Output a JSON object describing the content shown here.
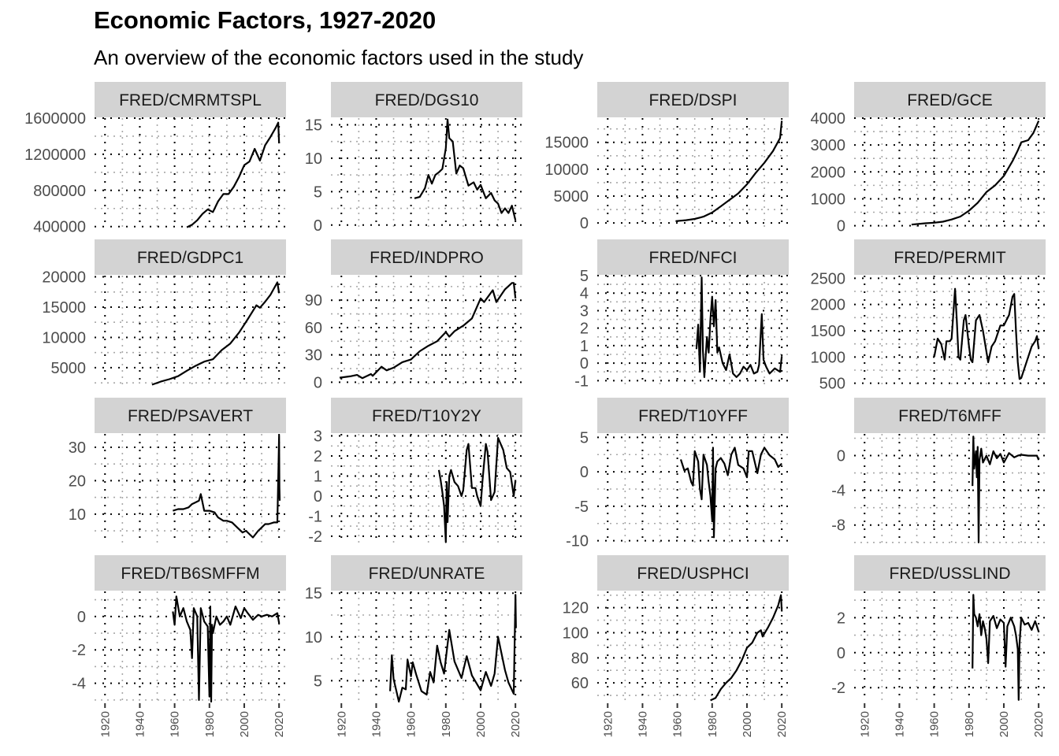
{
  "title": "Economic Factors, 1927-2020",
  "subtitle": "An overview of the economic factors used in the study",
  "chart_data": {
    "type": "line",
    "layout": "facet-grid 4x4, free y scales, shared x axis",
    "xlim": [
      1914,
      2024
    ],
    "x_ticks": [
      1920,
      1940,
      1960,
      1980,
      2000,
      2020
    ],
    "grid": "dotted major and minor lines",
    "legend": "none",
    "colors": {
      "strip": "#d3d3d3",
      "line": "#000000",
      "major_grid": "#000000",
      "minor_grid": "#a8a8a8",
      "axis_text": "#4d4d4d"
    },
    "panels": [
      {
        "label": "FRED/CMRMTSPL",
        "ylim": [
          380000,
          1600000
        ],
        "y_ticks": [
          400000,
          800000,
          1200000,
          1600000
        ],
        "y_tick_labels": [
          "400000",
          "800000",
          "1200000",
          "1600000"
        ],
        "x": [
          1967,
          1970,
          1973,
          1976,
          1979,
          1982,
          1985,
          1988,
          1991,
          1994,
          1997,
          2000,
          2003,
          2006,
          2009,
          2012,
          2015,
          2018,
          2019.5,
          2020
        ],
        "y": [
          392000,
          420000,
          470000,
          540000,
          590000,
          560000,
          680000,
          760000,
          760000,
          840000,
          950000,
          1080000,
          1120000,
          1260000,
          1130000,
          1300000,
          1390000,
          1490000,
          1550000,
          1320000
        ]
      },
      {
        "label": "FRED/DGS10",
        "ylim": [
          -0.5,
          16
        ],
        "y_ticks": [
          0,
          5,
          10,
          15
        ],
        "y_tick_labels": [
          "0",
          "5",
          "10",
          "15"
        ],
        "x": [
          1962,
          1965,
          1968,
          1970,
          1972,
          1974,
          1976,
          1978,
          1980,
          1981,
          1982,
          1984,
          1986,
          1988,
          1990,
          1993,
          1996,
          1998,
          2000,
          2003,
          2006,
          2008,
          2010,
          2012,
          2014,
          2016,
          2018,
          2020
        ],
        "y": [
          4.0,
          4.2,
          5.5,
          7.5,
          6.2,
          7.5,
          7.9,
          8.4,
          11.5,
          15.8,
          13.0,
          12.5,
          7.7,
          8.9,
          8.5,
          5.9,
          6.4,
          5.3,
          6.0,
          4.0,
          4.8,
          3.7,
          3.2,
          1.8,
          2.5,
          1.8,
          2.9,
          0.7
        ]
      },
      {
        "label": "FRED/DSPI",
        "ylim": [
          -1000,
          19500
        ],
        "y_ticks": [
          0,
          5000,
          10000,
          15000
        ],
        "y_tick_labels": [
          "0",
          "5000",
          "10000",
          "15000"
        ],
        "x": [
          1959,
          1965,
          1970,
          1975,
          1980,
          1985,
          1990,
          1995,
          2000,
          2005,
          2010,
          2015,
          2019,
          2020
        ],
        "y": [
          350,
          520,
          750,
          1180,
          1950,
          3100,
          4300,
          5500,
          7200,
          9300,
          11200,
          13400,
          15800,
          19000
        ]
      },
      {
        "label": "FRED/GCE",
        "ylim": [
          -100,
          4000
        ],
        "y_ticks": [
          0,
          1000,
          2000,
          3000,
          4000
        ],
        "y_tick_labels": [
          "0",
          "1000",
          "2000",
          "3000",
          "4000"
        ],
        "x": [
          1947,
          1955,
          1960,
          1965,
          1970,
          1975,
          1980,
          1985,
          1990,
          1995,
          2000,
          2005,
          2008,
          2010,
          2014,
          2017,
          2020
        ],
        "y": [
          40,
          90,
          110,
          150,
          230,
          340,
          560,
          850,
          1250,
          1500,
          1850,
          2400,
          2800,
          3100,
          3180,
          3450,
          3900
        ]
      },
      {
        "label": "FRED/GDPC1",
        "ylim": [
          2000,
          20200
        ],
        "y_ticks": [
          5000,
          10000,
          15000,
          20000
        ],
        "y_tick_labels": [
          "5000",
          "10000",
          "15000",
          "20000"
        ],
        "x": [
          1947,
          1952,
          1957,
          1962,
          1967,
          1972,
          1977,
          1982,
          1987,
          1992,
          1997,
          2002,
          2007,
          2009,
          2012,
          2015,
          2019,
          2020
        ],
        "y": [
          2200,
          2700,
          3100,
          3600,
          4500,
          5300,
          6000,
          6400,
          7900,
          9000,
          10800,
          13000,
          15300,
          14900,
          15900,
          17000,
          19100,
          17300
        ]
      },
      {
        "label": "FRED/INDPRO",
        "ylim": [
          -4,
          117
        ],
        "y_ticks": [
          0,
          30,
          60,
          90
        ],
        "y_tick_labels": [
          "0",
          "30",
          "60",
          "90"
        ],
        "x": [
          1919,
          1925,
          1929,
          1932,
          1937,
          1938,
          1943,
          1946,
          1950,
          1955,
          1960,
          1965,
          1970,
          1975,
          1980,
          1982,
          1985,
          1990,
          1995,
          2000,
          2002,
          2007,
          2009,
          2014,
          2018,
          2019,
          2020
        ],
        "y": [
          5,
          6.5,
          8,
          4.5,
          9,
          7,
          17,
          13,
          16,
          22,
          25,
          34,
          40,
          45,
          55,
          50,
          56,
          62,
          70,
          92,
          88,
          101,
          88,
          102,
          109,
          109,
          92
        ]
      },
      {
        "label": "FRED/NFCI",
        "ylim": [
          -1.3,
          5
        ],
        "y_ticks": [
          -1,
          0,
          1,
          2,
          3,
          4,
          5
        ],
        "y_tick_labels": [
          "-1",
          "0",
          "1",
          "2",
          "3",
          "4",
          "5"
        ],
        "x": [
          1971,
          1972,
          1973,
          1974,
          1974.7,
          1975.5,
          1977,
          1978,
          1979,
          1980,
          1981,
          1982,
          1983,
          1984,
          1986,
          1988,
          1990,
          1992,
          1994,
          1996,
          1998,
          2000,
          2002,
          2004,
          2006,
          2007,
          2008.5,
          2009.5,
          2011,
          2013,
          2016,
          2019,
          2020
        ],
        "y": [
          0.8,
          2.2,
          -0.5,
          4.9,
          0.7,
          -0.8,
          1.5,
          0.6,
          2.5,
          3.8,
          2.1,
          3.6,
          0.6,
          0.9,
          0.0,
          -0.4,
          0.5,
          -0.6,
          -0.8,
          -0.6,
          -0.2,
          -0.4,
          -0.1,
          -0.6,
          -0.5,
          -0.1,
          2.8,
          0.2,
          -0.2,
          -0.6,
          -0.3,
          -0.5,
          0.4
        ]
      },
      {
        "label": "FRED/PERMIT",
        "ylim": [
          450,
          2550
        ],
        "y_ticks": [
          500,
          1000,
          1500,
          2000,
          2500
        ],
        "y_tick_labels": [
          "500",
          "1000",
          "1500",
          "2000",
          "2500"
        ],
        "x": [
          1960,
          1962,
          1964,
          1966,
          1967,
          1969,
          1970,
          1972,
          1973,
          1974,
          1975,
          1977,
          1978,
          1980,
          1981,
          1982,
          1984,
          1986,
          1988,
          1990,
          1991,
          1993,
          1995,
          1998,
          2000,
          2003,
          2005,
          2006,
          2007,
          2008,
          2009,
          2010,
          2012,
          2014,
          2016,
          2018,
          2019,
          2020
        ],
        "y": [
          1000,
          1350,
          1250,
          950,
          1300,
          1300,
          1350,
          2300,
          1700,
          1000,
          950,
          1700,
          1800,
          1200,
          950,
          900,
          1700,
          1800,
          1500,
          1100,
          900,
          1200,
          1300,
          1600,
          1600,
          1800,
          2150,
          2200,
          1500,
          900,
          580,
          600,
          800,
          1000,
          1200,
          1300,
          1400,
          1150
        ]
      },
      {
        "label": "FRED/PSAVERT",
        "ylim": [
          1,
          34
        ],
        "y_ticks": [
          10,
          20,
          30
        ],
        "y_tick_labels": [
          "10",
          "20",
          "30"
        ],
        "x": [
          1959,
          1962,
          1965,
          1968,
          1970,
          1972,
          1974,
          1975,
          1977,
          1980,
          1983,
          1985,
          1988,
          1990,
          1993,
          1996,
          1999,
          2001,
          2005,
          2008,
          2010,
          2012,
          2014,
          2017,
          2019,
          2020,
          2020.2,
          2020.4
        ],
        "y": [
          11,
          11.5,
          11.5,
          12,
          13,
          13.5,
          14,
          16,
          11,
          11,
          10.5,
          9,
          8,
          8,
          7.5,
          6,
          4.5,
          5,
          3,
          5,
          6,
          7,
          7,
          7.5,
          7.5,
          33.5,
          18,
          14
        ]
      },
      {
        "label": "FRED/T10Y2Y",
        "ylim": [
          -2.4,
          3.1
        ],
        "y_ticks": [
          -2,
          -1,
          0,
          1,
          2,
          3
        ],
        "y_tick_labels": [
          "-2",
          "-1",
          "0",
          "1",
          "2",
          "3"
        ],
        "x": [
          1976,
          1977,
          1978,
          1979,
          1980,
          1980.5,
          1981,
          1982,
          1983,
          1985,
          1987,
          1989,
          1990,
          1992,
          1993,
          1995,
          1997,
          1998,
          2000,
          2001,
          2003,
          2004,
          2006,
          2008,
          2010,
          2011,
          2013,
          2015,
          2017,
          2019,
          2020
        ],
        "y": [
          1.3,
          0.8,
          0.2,
          -0.5,
          -2.3,
          0.7,
          -1.3,
          1.0,
          1.3,
          0.7,
          0.5,
          0.0,
          0.3,
          2.3,
          2.6,
          0.4,
          0.4,
          0.0,
          -0.5,
          0.7,
          2.6,
          2.2,
          -0.2,
          0.2,
          2.9,
          2.7,
          2.3,
          1.4,
          1.2,
          0.0,
          0.8
        ]
      },
      {
        "label": "FRED/T10YFF",
        "ylim": [
          -10.5,
          5.5
        ],
        "y_ticks": [
          -10,
          -5,
          0,
          5
        ],
        "y_tick_labels": [
          "-10",
          "-5",
          "0",
          "5"
        ],
        "x": [
          1962,
          1964,
          1966,
          1968,
          1969,
          1970,
          1972,
          1973,
          1974,
          1975,
          1977,
          1978,
          1979,
          1980,
          1980.5,
          1981,
          1982,
          1983,
          1985,
          1987,
          1989,
          1991,
          1993,
          1995,
          1998,
          2000,
          2001,
          2003,
          2006,
          2008,
          2010,
          2013,
          2016,
          2018,
          2020
        ],
        "y": [
          1.8,
          0.2,
          0.5,
          -1.5,
          -2.0,
          3.0,
          1.5,
          -2.5,
          -4.0,
          2.5,
          1.0,
          -1.5,
          -3.5,
          -7.0,
          3.5,
          -9.5,
          0.5,
          1.5,
          2.0,
          1.2,
          -0.5,
          2.5,
          3.5,
          1.0,
          0.5,
          -0.8,
          3.0,
          3.0,
          -0.2,
          2.5,
          3.5,
          2.4,
          1.8,
          0.7,
          1.2
        ]
      },
      {
        "label": "FRED/T6MFF",
        "ylim": [
          -10.2,
          2.5
        ],
        "y_ticks": [
          -8,
          -4,
          0
        ],
        "y_tick_labels": [
          "-8",
          "-4",
          "0"
        ],
        "x": [
          1982,
          1982.5,
          1983,
          1984,
          1984.5,
          1985,
          1985.5,
          1986,
          1987,
          1988,
          1990,
          1992,
          1994,
          1996,
          1998,
          2000,
          2003,
          2006,
          2008,
          2010,
          2014,
          2018,
          2019,
          2020
        ],
        "y": [
          -3.5,
          2.2,
          -1.5,
          0.5,
          -2.5,
          1.0,
          -10.0,
          -0.5,
          0.8,
          -0.8,
          0.0,
          -1.0,
          0.5,
          -0.3,
          0.2,
          -0.8,
          0.3,
          -0.2,
          0.0,
          0.1,
          0.0,
          0.0,
          0.0,
          -0.5
        ]
      },
      {
        "label": "FRED/TB6SMFFM",
        "ylim": [
          -5.1,
          1.5
        ],
        "y_ticks": [
          -4,
          -2,
          0
        ],
        "y_tick_labels": [
          "-4",
          "-2",
          "0"
        ],
        "x": [
          1959,
          1960,
          1961,
          1963,
          1965,
          1967,
          1969,
          1970,
          1971,
          1973,
          1974,
          1975,
          1977,
          1979,
          1980,
          1980.5,
          1981,
          1981.5,
          1982,
          1984,
          1986,
          1988,
          1990,
          1992,
          1995,
          1998,
          2000,
          2002,
          2005,
          2008,
          2010,
          2013,
          2016,
          2019,
          2020
        ],
        "y": [
          0.3,
          -0.5,
          1.2,
          0.0,
          0.5,
          -0.3,
          -0.8,
          -2.5,
          0.5,
          0.0,
          -5.0,
          0.5,
          -0.3,
          -0.6,
          -4.8,
          0.6,
          -5.1,
          -0.5,
          -1.0,
          0.0,
          -0.5,
          -0.3,
          0.0,
          -0.5,
          0.6,
          -0.1,
          0.5,
          0.2,
          -0.2,
          0.1,
          0.0,
          0.1,
          0.0,
          0.2,
          -0.4
        ]
      },
      {
        "label": "FRED/UNRATE",
        "ylim": [
          2.6,
          15.2
        ],
        "y_ticks": [
          5,
          10,
          15
        ],
        "y_tick_labels": [
          "5",
          "10",
          "15"
        ],
        "x": [
          1948,
          1949,
          1950,
          1953,
          1955,
          1957,
          1958,
          1960,
          1961,
          1963,
          1966,
          1969,
          1971,
          1973,
          1975,
          1977,
          1979,
          1982,
          1985,
          1989,
          1992,
          1995,
          2000,
          2003,
          2006,
          2008,
          2010,
          2014,
          2016,
          2019,
          2020,
          2020.3
        ],
        "y": [
          3.8,
          7.9,
          5.2,
          2.6,
          4.2,
          4.0,
          7.4,
          5.5,
          7.1,
          5.7,
          3.8,
          3.4,
          6.0,
          4.8,
          9.0,
          7.1,
          5.8,
          10.8,
          7.2,
          5.3,
          7.8,
          5.6,
          3.9,
          6.0,
          4.4,
          5.8,
          10.0,
          6.2,
          4.8,
          3.5,
          14.8,
          11.0
        ]
      },
      {
        "label": "FRED/USPHCI",
        "ylim": [
          45,
          133
        ],
        "y_ticks": [
          60,
          80,
          100,
          120
        ],
        "y_tick_labels": [
          "60",
          "80",
          "100",
          "120"
        ],
        "x": [
          1979,
          1982,
          1985,
          1988,
          1991,
          1994,
          1997,
          2000,
          2003,
          2006,
          2008,
          2009,
          2012,
          2015,
          2018,
          2019.5,
          2020
        ],
        "y": [
          46,
          48,
          55,
          60,
          64,
          70,
          78,
          88,
          92,
          100,
          102,
          97,
          104,
          112,
          122,
          130,
          117
        ]
      },
      {
        "label": "FRED/USSLIND",
        "ylim": [
          -2.8,
          3.5
        ],
        "y_ticks": [
          -2,
          0,
          2
        ],
        "y_tick_labels": [
          "-2",
          "0",
          "2"
        ],
        "x": [
          1982,
          1982.5,
          1983,
          1984,
          1985,
          1986,
          1987,
          1988,
          1989,
          1990,
          1991,
          1992,
          1994,
          1996,
          1998,
          2000,
          2001,
          2002,
          2004,
          2006,
          2007,
          2008,
          2008.5,
          2009,
          2010,
          2012,
          2014,
          2016,
          2018,
          2019,
          2020
        ],
        "y": [
          -0.9,
          3.3,
          2.2,
          2.0,
          1.5,
          2.2,
          1.0,
          1.8,
          1.4,
          0.8,
          -0.6,
          1.8,
          2.1,
          1.4,
          1.9,
          1.7,
          -0.8,
          1.5,
          2.0,
          1.5,
          1.0,
          0.2,
          -2.7,
          0.5,
          2.0,
          1.6,
          1.7,
          1.3,
          1.8,
          1.5,
          1.2
        ]
      }
    ]
  }
}
